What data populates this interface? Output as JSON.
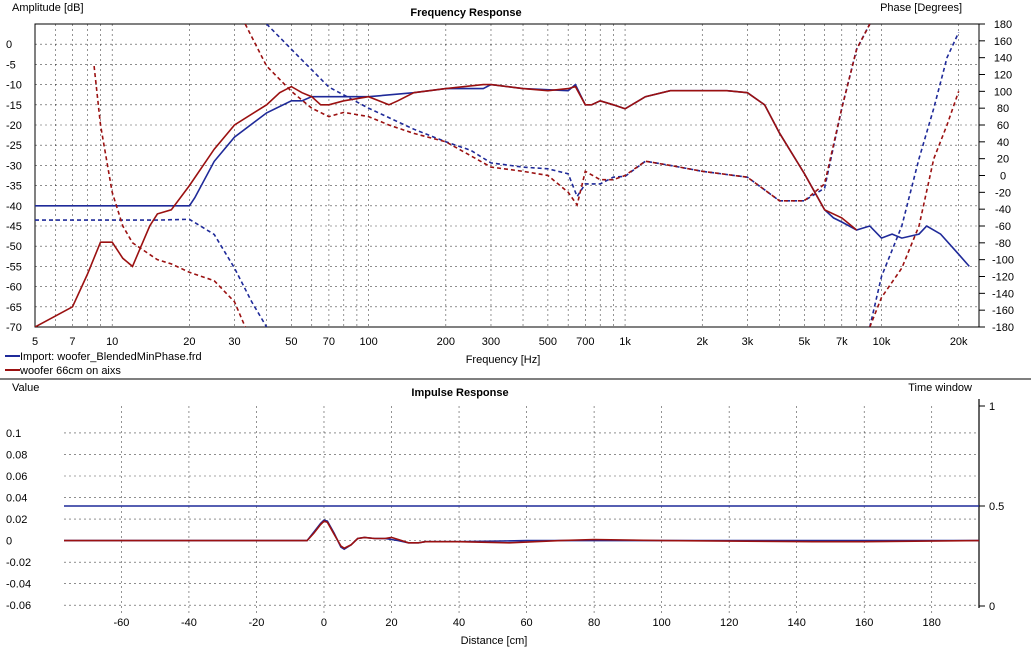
{
  "colors": {
    "series1": "#1f2a99",
    "series2": "#9b1111",
    "grid": "#000000",
    "separator": "#555555"
  },
  "chart_data": [
    {
      "type": "line",
      "title": "Frequency Response",
      "ylabel": "Amplitude [dB]",
      "y2label": "Phase [Degrees]",
      "xlabel": "Frequency [Hz]",
      "xscale": "log",
      "xlim": [
        5,
        24000
      ],
      "ylim": [
        -70,
        5
      ],
      "y2lim": [
        -180,
        180
      ],
      "grid": true,
      "legend_position": "bottom-left",
      "x_ticks": [
        5,
        7,
        10,
        20,
        30,
        50,
        70,
        100,
        200,
        300,
        500,
        700,
        1000,
        2000,
        3000,
        5000,
        7000,
        10000,
        20000
      ],
      "x_tick_labels": [
        "5",
        "7",
        "10",
        "20",
        "30",
        "50",
        "70",
        "100",
        "200",
        "300",
        "500",
        "700",
        "1k",
        "2k",
        "3k",
        "5k",
        "7k",
        "10k",
        "20k"
      ],
      "y_ticks": [
        0,
        -5,
        -10,
        -15,
        -20,
        -25,
        -30,
        -35,
        -40,
        -45,
        -50,
        -55,
        -60,
        -65,
        -70
      ],
      "y2_ticks": [
        180,
        160,
        140,
        120,
        100,
        80,
        60,
        40,
        20,
        0,
        -20,
        -40,
        -60,
        -80,
        -100,
        -120,
        -140,
        -160,
        -180
      ],
      "series": [
        {
          "name": "Import: woofer_BlendedMinPhase.frd",
          "color": "#1f2a99",
          "magnitude": {
            "x": [
              5,
              10,
              20,
              21,
              25,
              30,
              40,
              50,
              55,
              60,
              70,
              80,
              100,
              150,
              200,
              250,
              280,
              300,
              400,
              600,
              640,
              700,
              740,
              800,
              900,
              1000,
              1200,
              1500,
              2000,
              2500,
              3000,
              3500,
              4000,
              5000,
              6000,
              6500,
              7000,
              8000,
              9000,
              10000,
              11000,
              12000,
              14000,
              15000,
              17000,
              20000,
              22000
            ],
            "y": [
              -40,
              -40,
              -40,
              -38,
              -29,
              -23,
              -17,
              -14,
              -14,
              -13,
              -13,
              -13,
              -13,
              -12,
              -11,
              -11,
              -11,
              -10,
              -11,
              -11.5,
              -10,
              -15,
              -15,
              -14,
              -15,
              -16,
              -13,
              -11.5,
              -11.5,
              -11.5,
              -12,
              -15,
              -22,
              -32,
              -41,
              -43,
              -44,
              -46,
              -45,
              -48,
              -47,
              -48,
              -47,
              -45,
              -47,
              -52,
              -55
            ]
          },
          "phase": {
            "x": [
              5,
              15,
              20,
              25,
              30,
              35,
              40
            ],
            "y": [
              -53,
              -53,
              -52,
              -70,
              -110,
              -150,
              -180
            ]
          },
          "phase_wrapped": {
            "x": [
              40,
              50,
              70,
              100,
              150,
              200,
              250,
              300,
              400,
              500,
              600,
              650,
              700,
              800,
              900,
              1000,
              1200,
              1500,
              2000,
              3000,
              4000,
              5000,
              6000,
              7000,
              8000,
              9000
            ],
            "y": [
              180,
              150,
              105,
              80,
              55,
              40,
              30,
              15,
              10,
              8,
              2,
              -25,
              -10,
              -10,
              -2,
              -1,
              17,
              12,
              5,
              -2,
              -30,
              -30,
              -15,
              80,
              150,
              180
            ]
          },
          "phase_wrapped_2": {
            "x": [
              9000,
              10000,
              12000,
              14000,
              16000,
              18000,
              20000
            ],
            "y": [
              -180,
              -120,
              -60,
              20,
              80,
              140,
              170
            ]
          }
        },
        {
          "name": "woofer 66cm on aixs",
          "color": "#9b1111",
          "magnitude": {
            "x": [
              5,
              7,
              8,
              9,
              10,
              11,
              12,
              14,
              15,
              17,
              20,
              25,
              30,
              40,
              45,
              50,
              55,
              60,
              65,
              70,
              80,
              100,
              120,
              130,
              150,
              200,
              280,
              300,
              400,
              500,
              600,
              640,
              700,
              740,
              800,
              900,
              1000,
              1200,
              1500,
              2000,
              2500,
              3000,
              3500,
              4000,
              5000,
              6000,
              7000,
              8000
            ],
            "y": [
              -70,
              -65,
              -57,
              -49,
              -49,
              -53,
              -55,
              -45,
              -42,
              -41,
              -35,
              -26,
              -20,
              -15,
              -12,
              -10.5,
              -12,
              -13,
              -15,
              -15,
              -14,
              -13,
              -15,
              -14,
              -12,
              -11,
              -10,
              -10,
              -11,
              -11.5,
              -11,
              -10.5,
              -15,
              -15,
              -14,
              -15,
              -16,
              -13,
              -11.5,
              -11.5,
              -11.5,
              -12,
              -15,
              -22,
              -32,
              -41,
              -43,
              -46
            ]
          },
          "phase": {
            "x": [
              8.5,
              9,
              10,
              11,
              12,
              15,
              17,
              20,
              25,
              30,
              33
            ],
            "y": [
              130,
              60,
              -20,
              -60,
              -80,
              -100,
              -105,
              -115,
              -125,
              -150,
              -180
            ]
          },
          "phase_wrapped": {
            "x": [
              33,
              40,
              50,
              60,
              70,
              80,
              100,
              120,
              150,
              200,
              300,
              400,
              500,
              600,
              650,
              700,
              800,
              900,
              1000,
              1200,
              1500,
              2000,
              3000,
              4000,
              5000,
              6000,
              7000,
              8000,
              9000
            ],
            "y": [
              180,
              130,
              100,
              80,
              70,
              75,
              70,
              60,
              50,
              40,
              10,
              5,
              0,
              -20,
              -35,
              5,
              -5,
              -5,
              0,
              17,
              12,
              5,
              -2,
              -30,
              -30,
              -10,
              80,
              150,
              180
            ]
          },
          "phase_wrapped_2": {
            "x": [
              9000,
              10000,
              12000,
              14000,
              16000,
              18000,
              20000
            ],
            "y": [
              -180,
              -145,
              -110,
              -60,
              20,
              60,
              100
            ]
          }
        }
      ]
    },
    {
      "type": "line",
      "title": "Impulse Response",
      "ylabel": "Value",
      "y2label": "Time window",
      "xlabel": "Distance [cm]",
      "xlim": [
        -77,
        194
      ],
      "ylim": [
        -0.07,
        0.125
      ],
      "y2lim": [
        0,
        1
      ],
      "grid": true,
      "x_ticks": [
        -60,
        -40,
        -20,
        0,
        20,
        40,
        60,
        80,
        100,
        120,
        140,
        160,
        180
      ],
      "y_ticks": [
        0.1,
        0.08,
        0.06,
        0.04,
        0.02,
        0,
        -0.02,
        -0.04,
        -0.06
      ],
      "y_tick_labels": [
        "0.1",
        "0.08",
        "0.06",
        "0.04",
        "0.02",
        "0",
        "-0.02",
        "-0.04",
        "-0.06"
      ],
      "y2_ticks": [
        1,
        0.5,
        0
      ],
      "series": [
        {
          "name": "Import: woofer_BlendedMinPhase.frd",
          "color": "#1f2a99",
          "x": [
            -77,
            -8,
            -5,
            -3,
            -1,
            0,
            1,
            3,
            5,
            6,
            8,
            10,
            12,
            15,
            18,
            20,
            22,
            25,
            28,
            30,
            40,
            60,
            80,
            120,
            194
          ],
          "y": [
            0,
            0,
            0,
            0.008,
            0.016,
            0.019,
            0.018,
            0.007,
            -0.006,
            -0.008,
            -0.004,
            0.002,
            0.003,
            0.002,
            0.002,
            0.001,
            0,
            -0.002,
            -0.002,
            -0.001,
            -0.001,
            0,
            0,
            0,
            0
          ]
        },
        {
          "name": "woofer 66cm on aixs",
          "color": "#9b1111",
          "x": [
            -77,
            -8,
            -5,
            -3,
            -1,
            0,
            1,
            3,
            5,
            6,
            8,
            10,
            12,
            15,
            18,
            20,
            22,
            25,
            28,
            30,
            40,
            55,
            70,
            80,
            100,
            145,
            160,
            194
          ],
          "y": [
            0,
            0,
            0,
            0.007,
            0.015,
            0.018,
            0.017,
            0.006,
            -0.005,
            -0.007,
            -0.004,
            0.002,
            0.003,
            0.002,
            0.002,
            0.003,
            0.001,
            -0.002,
            -0.002,
            -0.001,
            -0.001,
            -0.002,
            0,
            0.001,
            0,
            -0.001,
            -0.001,
            0
          ]
        },
        {
          "name": "",
          "color": "#1f2a99",
          "axis": "y2",
          "x": [
            -77,
            194
          ],
          "y": [
            0.5,
            0.5
          ]
        }
      ]
    }
  ]
}
